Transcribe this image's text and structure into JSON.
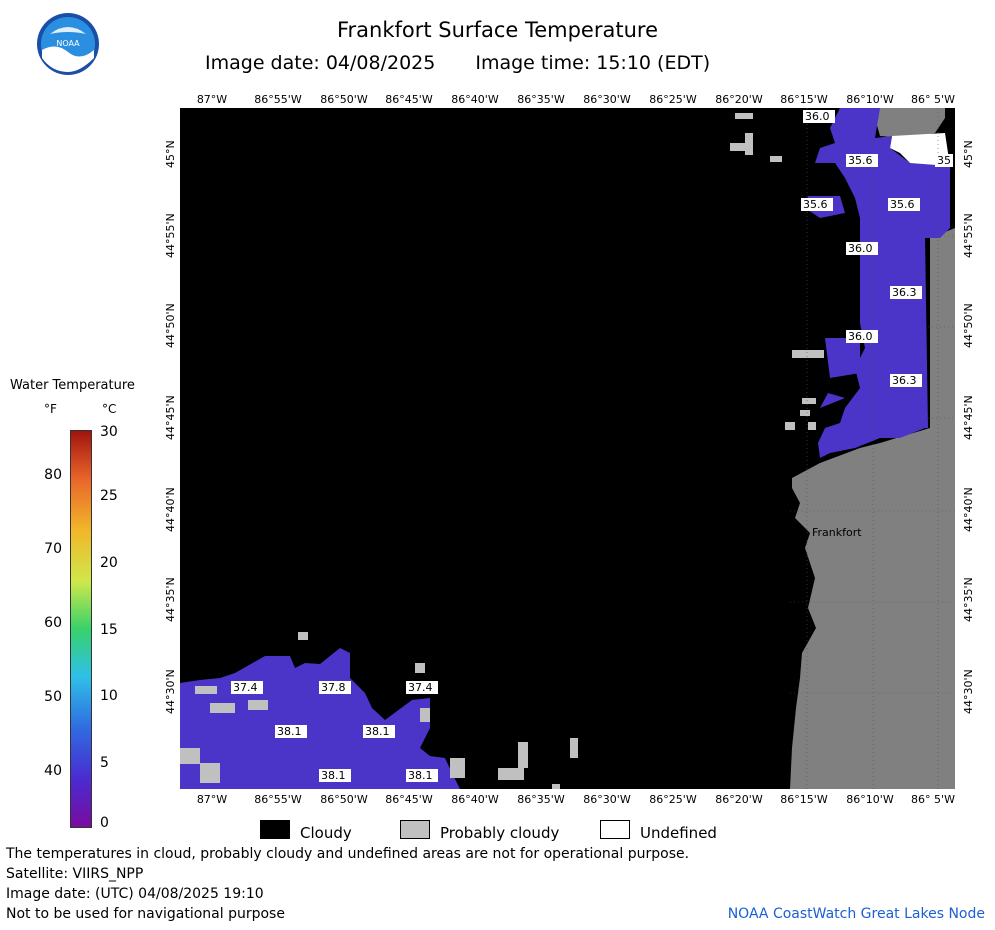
{
  "header": {
    "title": "Frankfort Surface Temperature",
    "image_date": "Image date: 04/08/2025",
    "image_time": "Image time: 15:10 (EDT)"
  },
  "map": {
    "lon_labels_top": [
      "87°W",
      "86°55'W",
      "86°50'W",
      "86°45'W",
      "86°40'W",
      "86°35'W",
      "86°30'W",
      "86°25'W",
      "86°20'W",
      "86°15'W",
      "86°10'W",
      "86° 5'W"
    ],
    "lon_labels_bottom": [
      "87°W",
      "86°55'W",
      "86°50'W",
      "86°45'W",
      "86°40'W",
      "86°35'W",
      "86°30'W",
      "86°25'W",
      "86°20'W",
      "86°15'W",
      "86°10'W",
      "86° 5'W"
    ],
    "lat_labels": [
      "45°N",
      "44°55'N",
      "44°50'N",
      "44°45'N",
      "44°40'N",
      "44°35'N",
      "44°30'N"
    ],
    "city_label": "Frankfort",
    "temperature_labels": [
      {
        "text": "36.0"
      },
      {
        "text": "35.6"
      },
      {
        "text": "35"
      },
      {
        "text": "35.6"
      },
      {
        "text": "35.6"
      },
      {
        "text": "36.0"
      },
      {
        "text": "36.3"
      },
      {
        "text": "36.0"
      },
      {
        "text": "36.3"
      },
      {
        "text": "37.4"
      },
      {
        "text": "37.8"
      },
      {
        "text": "37.4"
      },
      {
        "text": "38.1"
      },
      {
        "text": "38.1"
      },
      {
        "text": "38.1"
      },
      {
        "text": "38.1"
      }
    ],
    "colors": {
      "cloud": "#000000",
      "probably_cloudy": "#c0c0c0",
      "land": "#808080",
      "water_temp": "#4a35c8",
      "undefined": "#ffffff"
    }
  },
  "legend": {
    "title": "Water Temperature",
    "unit_f": "°F",
    "unit_c": "°C",
    "f_ticks": [
      "80",
      "70",
      "60",
      "50",
      "40"
    ],
    "c_ticks": [
      "30",
      "25",
      "20",
      "15",
      "10",
      "5",
      "0"
    ],
    "keys": [
      {
        "label": "Cloudy",
        "color": "#000000"
      },
      {
        "label": "Probably cloudy",
        "color": "#c0c0c0"
      },
      {
        "label": "Undefined",
        "color": "#ffffff"
      }
    ]
  },
  "footer": {
    "line1": "The temperatures in cloud, probably cloudy and undefined areas are not for operational purpose.",
    "line2": "Satellite: VIIRS_NPP",
    "line3": "Image date: (UTC) 04/08/2025  19:10",
    "line4": "Not to be used for navigational purpose",
    "credit": "NOAA CoastWatch Great Lakes Node"
  },
  "logo": {
    "text": "NOAA"
  }
}
